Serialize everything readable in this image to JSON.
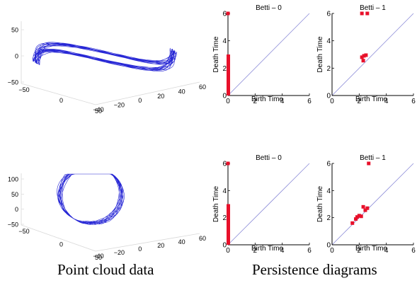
{
  "captions": {
    "left": "Point cloud data",
    "right": "Persistence diagrams"
  },
  "colors": {
    "trajectory": "#1010d0",
    "points": "#e8102a",
    "diagonal": "#8c8cd8",
    "axis": "#000000",
    "grid": "#d8d8d8"
  },
  "chart_data": [
    {
      "type": "line3d",
      "description_of_shape": "double-loop figure-eight trajectory",
      "z_ticks": [
        "50",
        "0",
        "−50"
      ],
      "x_ticks": [
        "−50",
        "0",
        "50"
      ],
      "y_ticks": [
        "−40",
        "−20",
        "0",
        "20",
        "40",
        "60"
      ],
      "xlim": [
        -50,
        50
      ],
      "ylim": [
        -40,
        60
      ],
      "zlim": [
        -50,
        50
      ]
    },
    {
      "type": "scatter",
      "title": "Betti – 0",
      "xlabel": "Birth Time",
      "ylabel": "Death Time",
      "xlim": [
        0,
        6
      ],
      "ylim": [
        0,
        6
      ],
      "x_ticks": [
        "0",
        "2",
        "4",
        "6"
      ],
      "y_ticks": [
        "0",
        "2",
        "4",
        "6"
      ],
      "points": [
        [
          0,
          6.0
        ]
      ],
      "bar": {
        "x": 0,
        "y_from": 0,
        "y_to": 3.0
      }
    },
    {
      "type": "scatter",
      "title": "Betti – 1",
      "xlabel": "Birth Time",
      "ylabel": "Death Time",
      "xlim": [
        0,
        6
      ],
      "ylim": [
        0,
        6
      ],
      "x_ticks": [
        "0",
        "2",
        "4",
        "6"
      ],
      "y_ticks": [
        "0",
        "2",
        "4",
        "6"
      ],
      "points": [
        [
          2.2,
          6.0
        ],
        [
          2.6,
          6.0
        ],
        [
          2.2,
          2.8
        ],
        [
          2.35,
          2.9
        ],
        [
          2.5,
          2.95
        ],
        [
          2.3,
          2.55
        ]
      ]
    },
    {
      "type": "line3d",
      "description_of_shape": "tall looping trajectory",
      "z_ticks": [
        "100",
        "50",
        "0",
        "−50"
      ],
      "x_ticks": [
        "−50",
        "0",
        "50"
      ],
      "y_ticks": [
        "−40",
        "−20",
        "0",
        "20",
        "40",
        "60"
      ],
      "xlim": [
        -50,
        50
      ],
      "ylim": [
        -40,
        60
      ],
      "zlim": [
        -50,
        100
      ]
    },
    {
      "type": "scatter",
      "title": "Betti – 0",
      "xlabel": "Birth Time",
      "ylabel": "Death Time",
      "xlim": [
        0,
        6
      ],
      "ylim": [
        0,
        6
      ],
      "x_ticks": [
        "0",
        "2",
        "4",
        "6"
      ],
      "y_ticks": [
        "0",
        "2",
        "4",
        "6"
      ],
      "points": [
        [
          0,
          6.0
        ]
      ],
      "bar": {
        "x": 0,
        "y_from": 0,
        "y_to": 3.0
      }
    },
    {
      "type": "scatter",
      "title": "Betti – 1",
      "xlabel": "Birth Time",
      "ylabel": "Death Time",
      "xlim": [
        0,
        6
      ],
      "ylim": [
        0,
        6
      ],
      "x_ticks": [
        "0",
        "2",
        "4",
        "6"
      ],
      "y_ticks": [
        "0",
        "2",
        "4",
        "6"
      ],
      "points": [
        [
          2.7,
          6.0
        ],
        [
          1.5,
          1.6
        ],
        [
          1.75,
          1.9
        ],
        [
          1.85,
          2.05
        ],
        [
          2.0,
          2.15
        ],
        [
          2.15,
          2.1
        ],
        [
          2.3,
          2.8
        ],
        [
          2.6,
          2.7
        ],
        [
          2.45,
          2.55
        ]
      ]
    }
  ]
}
